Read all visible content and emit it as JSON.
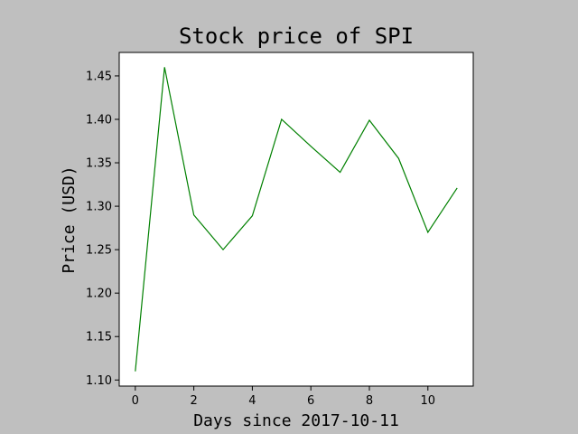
{
  "chart_data": {
    "type": "line",
    "title": "Stock price of SPI",
    "xlabel": "Days since 2017-10-11",
    "ylabel": "Price (USD)",
    "x": [
      0,
      1,
      2,
      3,
      4,
      5,
      6,
      7,
      8,
      9,
      10,
      11
    ],
    "series": [
      {
        "values": [
          1.11,
          1.46,
          1.29,
          1.25,
          1.289,
          1.4,
          1.369,
          1.339,
          1.399,
          1.355,
          1.27,
          1.321
        ],
        "color": "#008000"
      }
    ],
    "xlim": [
      -0.55,
      11.55
    ],
    "ylim": [
      1.093,
      1.477
    ],
    "xticks": [
      0,
      2,
      4,
      6,
      8,
      10
    ],
    "xtick_labels": [
      "0",
      "2",
      "4",
      "6",
      "8",
      "10"
    ],
    "yticks": [
      1.1,
      1.15,
      1.2,
      1.25,
      1.3,
      1.35,
      1.4,
      1.45
    ],
    "ytick_labels": [
      "1.10",
      "1.15",
      "1.20",
      "1.25",
      "1.30",
      "1.35",
      "1.40",
      "1.45"
    ],
    "grid": false,
    "legend": false,
    "colors": {
      "background": "#bfbfbf",
      "plot_area": "#ffffff",
      "line": "#008000"
    }
  }
}
